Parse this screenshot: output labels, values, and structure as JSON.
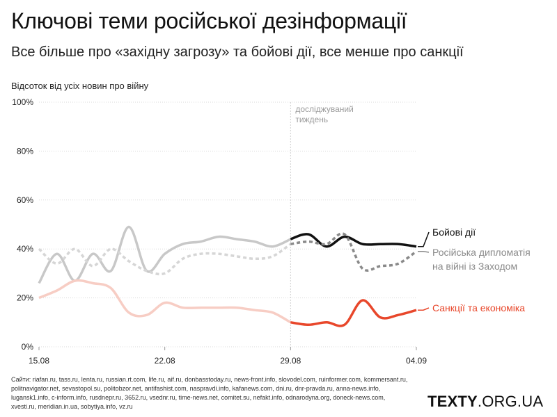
{
  "title": "Ключові теми російської дезінформації",
  "subtitle": "Все більше про «західну загрозу» та бойові дії, все менше про санкції",
  "ylabel": "Відсоток від усіх новин про війну",
  "sources": "Сайти: riafan.ru, tass.ru, lenta.ru, russian.rt.com, life.ru, aif.ru, donbasstoday.ru, news-front.info, slovodel.com, ruinformer.com, kommersant.ru, politnavigator.net, sevastopol.su, politobzor.net, antifashist.com, naspravdi.info, kafanews.com, dni.ru, dnr-pravda.ru, anna-news.info, lugansk1.info, c-inform.info, rusdnepr.ru, 3652.ru, vsednr.ru, time-news.net, comitet.su, nefakt.info, odnarodyna.org, doneck-news.com, xvesti.ru, meridian.in.ua, sobytiya.info, vz.ru",
  "brand": {
    "bold": "TEXTY",
    "rest": ".ORG.UA"
  },
  "colors": {
    "battle": "#111111",
    "battle_before": "#c8c8c8",
    "diplomacy": "#8a8a8a",
    "diplomacy_before": "#d6d6d6",
    "sanctions": "#e8472b",
    "sanctions_before": "#f7cdc4",
    "grid": "#d9d9d9"
  },
  "chart_data": {
    "type": "line",
    "x": [
      15,
      16,
      17,
      18,
      19,
      20,
      21,
      22,
      23,
      24,
      25,
      26,
      27,
      28,
      29,
      30,
      31,
      32,
      33,
      34,
      35,
      36
    ],
    "x_unit": "day of 2022 from 15.08 (32 = 01.09)",
    "xticks": [
      {
        "x": 15,
        "label": "15.08"
      },
      {
        "x": 22,
        "label": "22.08"
      },
      {
        "x": 29,
        "label": "29.08"
      },
      {
        "x": 36,
        "label": "04.09"
      }
    ],
    "ylim": [
      0,
      100
    ],
    "yticks": [
      "0%",
      "20%",
      "40%",
      "60%",
      "80%",
      "100%"
    ],
    "highlight_from": 29,
    "highlight_note": [
      "досліджуваний",
      "тиждень"
    ],
    "series": [
      {
        "name": "Бойові дії",
        "key": "battle",
        "dashed": false,
        "values": [
          26,
          38,
          27,
          38,
          31,
          49,
          31,
          38,
          42,
          43,
          45,
          44,
          43,
          41,
          44,
          46,
          41,
          45,
          42,
          42,
          42,
          41
        ]
      },
      {
        "name": "Російська дипломатія на війні із Заходом",
        "key": "diplomacy",
        "dashed": true,
        "values": [
          40,
          34,
          40,
          33,
          40,
          35,
          31,
          30,
          36,
          38,
          38,
          37,
          36,
          37,
          42,
          43,
          42,
          46,
          32,
          33,
          34,
          39
        ]
      },
      {
        "name": "Санкції та економіка",
        "key": "sanctions",
        "dashed": false,
        "values": [
          20,
          23,
          27,
          26,
          24,
          14,
          13,
          18,
          16,
          16,
          16,
          16,
          15,
          14,
          10,
          9,
          10,
          9,
          19,
          12,
          13,
          15
        ]
      }
    ],
    "legend": [
      {
        "key": "battle",
        "lines": [
          "Бойові дії"
        ]
      },
      {
        "key": "diplomacy",
        "lines": [
          "Російська дипломатія",
          "на війні із Заходом"
        ]
      },
      {
        "key": "sanctions",
        "lines": [
          "Санкції та економіка"
        ]
      }
    ]
  }
}
